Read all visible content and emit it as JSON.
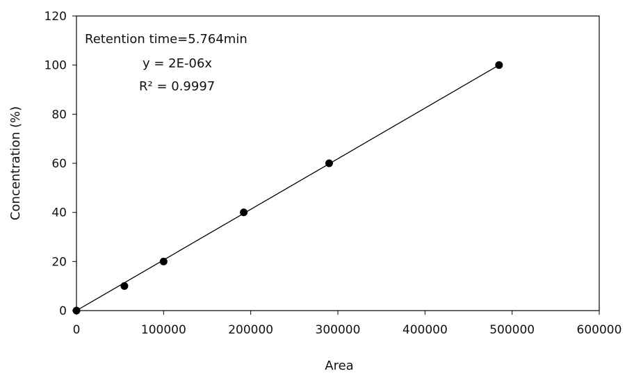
{
  "chart_data": {
    "type": "scatter",
    "title": "",
    "xlabel": "Area",
    "ylabel": "Concentration (%)",
    "xlim": [
      0,
      600000
    ],
    "ylim": [
      0,
      120
    ],
    "xticks": [
      0,
      100000,
      200000,
      300000,
      400000,
      500000,
      600000
    ],
    "xtick_labels": [
      "0",
      "100000",
      "200000",
      "300000",
      "400000",
      "500000",
      "600000"
    ],
    "yticks": [
      0,
      20,
      40,
      60,
      80,
      100,
      120
    ],
    "ytick_labels": [
      "0",
      "20",
      "40",
      "60",
      "80",
      "100",
      "120"
    ],
    "grid": false,
    "series": [
      {
        "x": [
          0,
          55000,
          100000,
          192000,
          290000,
          485000
        ],
        "y": [
          0,
          10,
          20,
          40,
          60,
          100
        ]
      }
    ],
    "trendline": {
      "x": [
        0,
        485000
      ],
      "y": [
        0,
        100
      ]
    },
    "annotations": [
      "Retention time=5.764min",
      "y = 2E-06x",
      "R² = 0.9997"
    ],
    "colors": {
      "marker": "#000000",
      "line": "#000000",
      "axis": "#000000"
    }
  }
}
